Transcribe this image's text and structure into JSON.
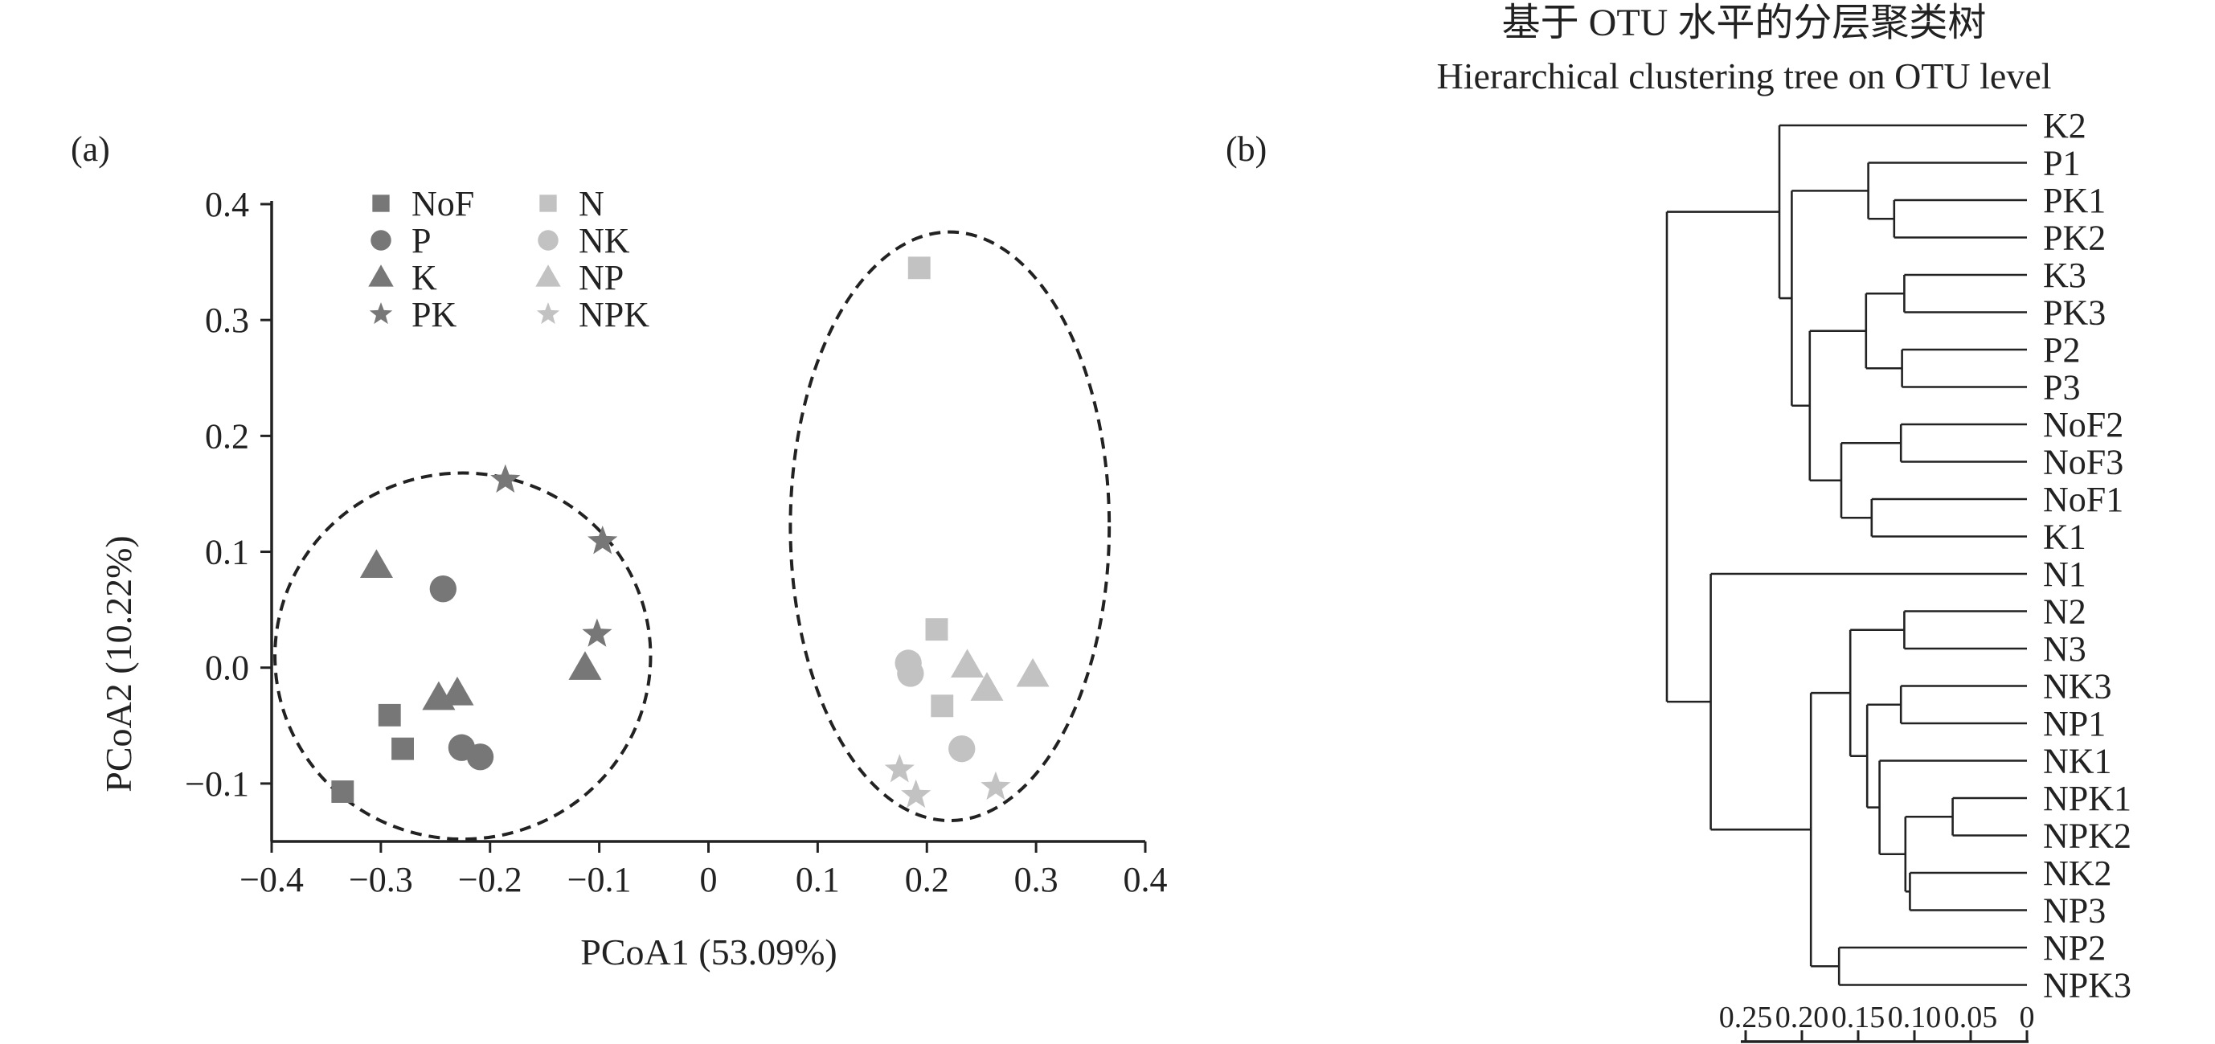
{
  "colors": {
    "dark": "#777777",
    "light": "#c2c2c2",
    "ink": "#222222"
  },
  "chart_data": [
    {
      "type": "scatter",
      "panel_label": "(a)",
      "xlabel": "PCoA1 (53.09%)",
      "ylabel": "PCoA2 (10.22%)",
      "xlim": [
        -0.4,
        0.4
      ],
      "ylim": [
        -0.15,
        0.4
      ],
      "xticks": [
        -0.4,
        -0.3,
        -0.2,
        -0.1,
        0,
        0.1,
        0.2,
        0.3,
        0.4
      ],
      "xtick_labels": [
        "−0.4",
        "−0.3",
        "−0.2",
        "−0.1",
        "0",
        "0.1",
        "0.2",
        "0.3",
        "0.4"
      ],
      "yticks": [
        -0.1,
        0,
        0.1,
        0.2,
        0.3,
        0.4
      ],
      "ytick_labels": [
        "−0.1",
        "0.0",
        "0.1",
        "0.2",
        "0.3",
        "0.4"
      ],
      "grid": false,
      "legend_position": "top-left",
      "series": [
        {
          "name": "NoF",
          "marker": "square",
          "shade": "dark",
          "points": [
            [
              -0.335,
              -0.107
            ],
            [
              -0.292,
              -0.041
            ],
            [
              -0.28,
              -0.07
            ]
          ]
        },
        {
          "name": "P",
          "marker": "circle",
          "shade": "dark",
          "points": [
            [
              -0.243,
              0.068
            ],
            [
              -0.226,
              -0.069
            ],
            [
              -0.209,
              -0.077
            ]
          ]
        },
        {
          "name": "K",
          "marker": "triangle",
          "shade": "dark",
          "points": [
            [
              -0.304,
              0.088
            ],
            [
              -0.247,
              -0.026
            ],
            [
              -0.23,
              -0.022
            ],
            [
              -0.113,
              0.0
            ]
          ]
        },
        {
          "name": "PK",
          "marker": "star",
          "shade": "dark",
          "points": [
            [
              -0.186,
              0.162
            ],
            [
              -0.097,
              0.109
            ],
            [
              -0.102,
              0.029
            ]
          ]
        },
        {
          "name": "N",
          "marker": "square",
          "shade": "light",
          "points": [
            [
              0.193,
              0.345
            ],
            [
              0.209,
              0.033
            ],
            [
              0.214,
              -0.033
            ]
          ]
        },
        {
          "name": "NK",
          "marker": "circle",
          "shade": "light",
          "points": [
            [
              0.183,
              0.004
            ],
            [
              0.185,
              -0.005
            ],
            [
              0.232,
              -0.07
            ]
          ]
        },
        {
          "name": "NP",
          "marker": "triangle",
          "shade": "light",
          "points": [
            [
              0.237,
              0.002
            ],
            [
              0.255,
              -0.018
            ],
            [
              0.297,
              -0.006
            ]
          ]
        },
        {
          "name": "NPK",
          "marker": "star",
          "shade": "light",
          "points": [
            [
              0.175,
              -0.088
            ],
            [
              0.19,
              -0.11
            ],
            [
              0.263,
              -0.103
            ]
          ]
        }
      ],
      "ellipses": [
        {
          "cx": -0.225,
          "cy": 0.01,
          "rx": 0.172,
          "ry": 0.158
        },
        {
          "cx": 0.221,
          "cy": 0.122,
          "rx": 0.146,
          "ry": 0.254
        }
      ]
    },
    {
      "type": "dendrogram",
      "panel_label": "(b)",
      "title": "基于 OTU 水平的分层聚类树",
      "subtitle": "Hierarchical clustering tree on OTU level",
      "axis_ticks": [
        0.25,
        0.2,
        0.15,
        0.1,
        0.05,
        0
      ],
      "axis_tick_labels": [
        "0.25",
        "0.20",
        "0.15",
        "0.10",
        "0.05",
        "0"
      ],
      "leaves": [
        "K2",
        "P1",
        "PK1",
        "PK2",
        "K3",
        "PK3",
        "P2",
        "P3",
        "NoF2",
        "NoF3",
        "NoF1",
        "K1",
        "N1",
        "N2",
        "N3",
        "NK3",
        "NP1",
        "NK1",
        "NPK1",
        "NPK2",
        "NK2",
        "NP3",
        "NP2",
        "NPK3"
      ],
      "merges": [
        {
          "id": "m1",
          "children": [
            2,
            3
          ],
          "height": 0.118
        },
        {
          "id": "m2",
          "children": [
            1,
            "m1"
          ],
          "height": 0.141
        },
        {
          "id": "m3",
          "children": [
            4,
            5
          ],
          "height": 0.109
        },
        {
          "id": "m4",
          "children": [
            6,
            7
          ],
          "height": 0.111
        },
        {
          "id": "m5",
          "children": [
            "m3",
            "m4"
          ],
          "height": 0.143
        },
        {
          "id": "m6",
          "children": [
            8,
            9
          ],
          "height": 0.112
        },
        {
          "id": "m7",
          "children": [
            10,
            11
          ],
          "height": 0.138
        },
        {
          "id": "m8",
          "children": [
            "m6",
            "m7"
          ],
          "height": 0.165
        },
        {
          "id": "m9",
          "children": [
            "m5",
            "m8"
          ],
          "height": 0.193
        },
        {
          "id": "m10",
          "children": [
            "m2",
            "m9"
          ],
          "height": 0.209
        },
        {
          "id": "m11",
          "children": [
            0,
            "m10"
          ],
          "height": 0.22
        },
        {
          "id": "m12",
          "children": [
            13,
            14
          ],
          "height": 0.109
        },
        {
          "id": "m13",
          "children": [
            15,
            16
          ],
          "height": 0.112
        },
        {
          "id": "m14",
          "children": [
            18,
            19
          ],
          "height": 0.066
        },
        {
          "id": "m15",
          "children": [
            20,
            21
          ],
          "height": 0.104
        },
        {
          "id": "m16",
          "children": [
            "m14",
            "m15"
          ],
          "height": 0.108
        },
        {
          "id": "m17",
          "children": [
            17,
            "m16"
          ],
          "height": 0.131
        },
        {
          "id": "m18",
          "children": [
            "m13",
            "m17"
          ],
          "height": 0.142
        },
        {
          "id": "m19",
          "children": [
            "m12",
            "m18"
          ],
          "height": 0.157
        },
        {
          "id": "m20",
          "children": [
            22,
            23
          ],
          "height": 0.167
        },
        {
          "id": "m21",
          "children": [
            "m19",
            "m20"
          ],
          "height": 0.192
        },
        {
          "id": "m22",
          "children": [
            12,
            "m21"
          ],
          "height": 0.281
        },
        {
          "id": "m23",
          "children": [
            "m11",
            "m22"
          ],
          "height": 0.32
        }
      ]
    }
  ]
}
